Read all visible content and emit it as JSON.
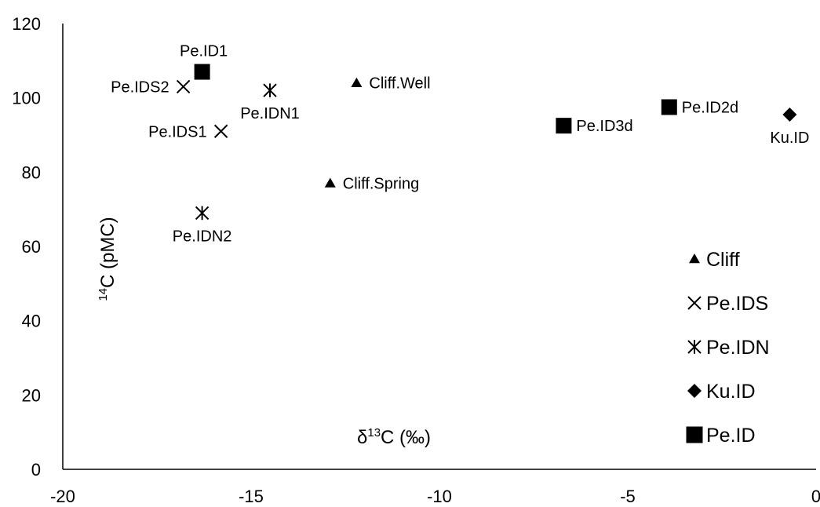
{
  "chart_data": {
    "type": "scatter",
    "xlabel": {
      "prefix": "δ",
      "sup": "13",
      "main": "C (‰)"
    },
    "ylabel": {
      "sup": "14",
      "main": "C (pMC)"
    },
    "xlim": [
      -20,
      0
    ],
    "ylim": [
      0,
      120
    ],
    "xticks": [
      -20,
      -15,
      -10,
      -5,
      0
    ],
    "yticks": [
      0,
      20,
      40,
      60,
      80,
      100,
      120
    ],
    "grid": false,
    "legend_position": "bottom-right",
    "series": [
      {
        "name": "Cliff",
        "marker": "triangle",
        "points": [
          {
            "label": "Cliff.Well",
            "x": -12.2,
            "y": 104,
            "label_pos": "right"
          },
          {
            "label": "Cliff.Spring",
            "x": -12.9,
            "y": 77,
            "label_pos": "right"
          }
        ]
      },
      {
        "name": "Pe.IDS",
        "marker": "x",
        "points": [
          {
            "label": "Pe.IDS2",
            "x": -16.8,
            "y": 103,
            "label_pos": "left"
          },
          {
            "label": "Pe.IDS1",
            "x": -15.8,
            "y": 91,
            "label_pos": "left"
          }
        ]
      },
      {
        "name": "Pe.IDN",
        "marker": "asterisk",
        "points": [
          {
            "label": "Pe.IDN1",
            "x": -14.5,
            "y": 102,
            "label_pos": "below"
          },
          {
            "label": "Pe.IDN2",
            "x": -16.3,
            "y": 69,
            "label_pos": "below"
          }
        ]
      },
      {
        "name": "Ku.ID",
        "marker": "diamond",
        "points": [
          {
            "label": "Ku.ID",
            "x": -0.7,
            "y": 95.5,
            "label_pos": "below"
          }
        ]
      },
      {
        "name": "Pe.ID",
        "marker": "square",
        "points": [
          {
            "label": "Pe.ID1",
            "x": -16.3,
            "y": 107,
            "label_pos": "above"
          },
          {
            "label": "Pe.ID3d",
            "x": -6.7,
            "y": 92.5,
            "label_pos": "right"
          },
          {
            "label": "Pe.ID2d",
            "x": -3.9,
            "y": 97.5,
            "label_pos": "right"
          }
        ]
      }
    ]
  }
}
